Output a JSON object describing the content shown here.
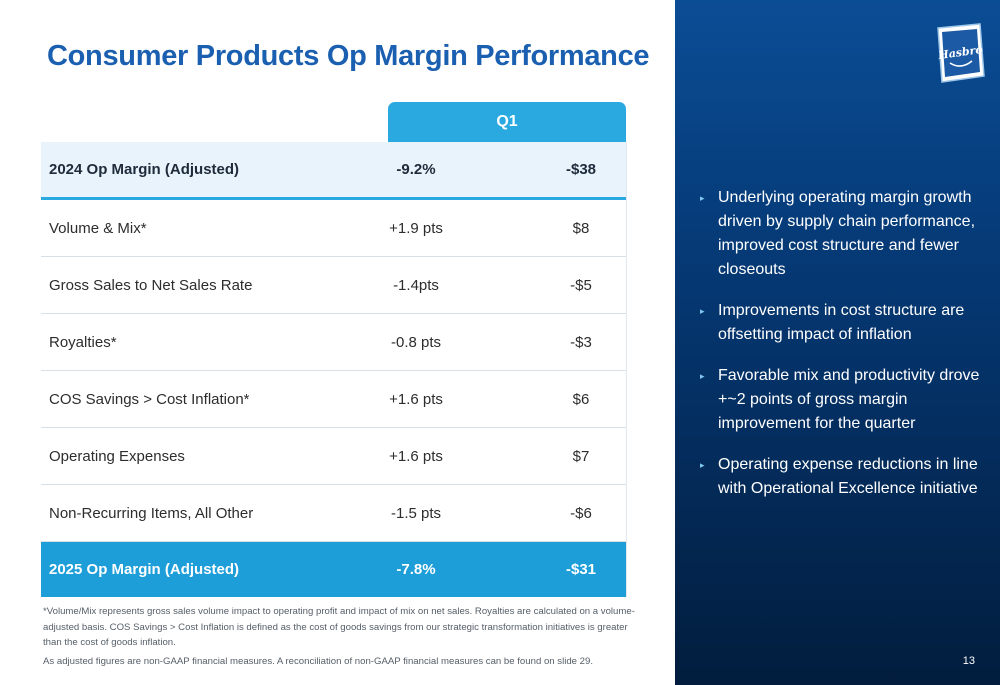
{
  "title": "Consumer Products Op Margin Performance",
  "column_header": "Q1",
  "rows": [
    {
      "label": "2024 Op Margin (Adjusted)",
      "pct": "-9.2%",
      "value": "-$38"
    },
    {
      "label": "Volume & Mix*",
      "pct": "+1.9 pts",
      "value": "$8"
    },
    {
      "label": "Gross Sales to Net Sales Rate",
      "pct": "-1.4pts",
      "value": "-$5"
    },
    {
      "label": "Royalties*",
      "pct": "-0.8 pts",
      "value": "-$3"
    },
    {
      "label": "COS Savings > Cost Inflation*",
      "pct": "+1.6 pts",
      "value": "$6"
    },
    {
      "label": "Operating Expenses",
      "pct": "+1.6 pts",
      "value": "$7"
    },
    {
      "label": "Non-Recurring Items, All Other",
      "pct": "-1.5 pts",
      "value": "-$6"
    },
    {
      "label": "2025 Op Margin  (Adjusted)",
      "pct": "-7.8%",
      "value": "-$31"
    }
  ],
  "footnote": "*Volume/Mix represents gross sales volume impact to operating profit and impact of mix on net sales. Royalties are calculated on a volume-adjusted basis. COS Savings > Cost Inflation is defined as the cost of goods savings from our strategic transformation initiatives is greater than the cost of goods inflation.",
  "footnote2": "As adjusted figures are non-GAAP financial measures. A reconciliation of non-GAAP financial measures can be found on slide 29.",
  "bullets": [
    "Underlying operating margin growth driven by supply chain performance, improved cost structure and fewer closeouts",
    "Improvements in cost structure are offsetting impact of inflation",
    "Favorable mix and productivity drove +~2 points of gross margin improvement for the quarter",
    "Operating expense reductions in line with Operational Excellence initiative"
  ],
  "bullet_marker": "▸",
  "logo_text": "Hasbro",
  "page_number": "13",
  "colors": {
    "title": "#1a5fb0",
    "accent": "#2aa9e1",
    "panel": "#063d7c"
  }
}
